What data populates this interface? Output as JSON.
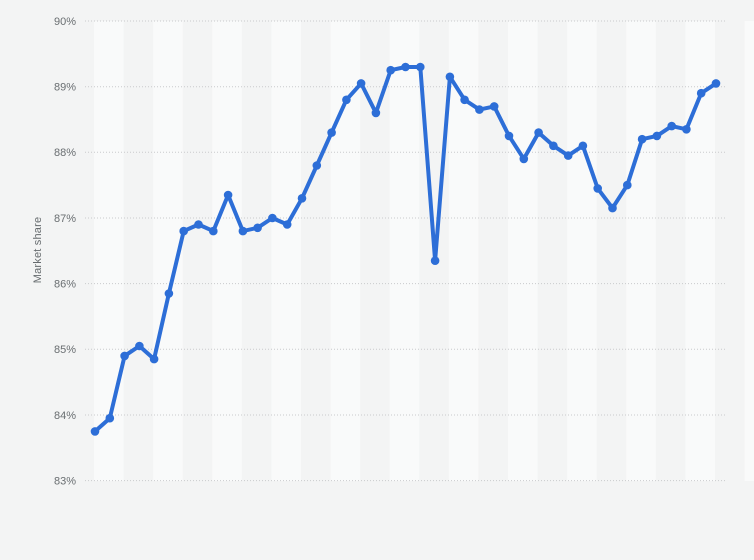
{
  "page": {
    "background_color": "#f3f4f4",
    "stripe_color": "#f9fafa",
    "gridline_color": "#c9cacc",
    "tick_label_color": "#696e71"
  },
  "chart_data": {
    "type": "line",
    "title": "",
    "xlabel": "",
    "ylabel": "Market share",
    "legend": "none",
    "grid": "horizontal-dotted",
    "plot_background": "alternating vertical stripe bands, x-axis labels cropped out of view",
    "ylim": [
      82.8,
      90.15
    ],
    "yticks": [
      {
        "value": 90,
        "label": "90%"
      },
      {
        "value": 89,
        "label": "89%"
      },
      {
        "value": 88,
        "label": "88%"
      },
      {
        "value": 87,
        "label": "87%"
      },
      {
        "value": 86,
        "label": "86%"
      },
      {
        "value": 85,
        "label": "85%"
      },
      {
        "value": 84,
        "label": "84%"
      },
      {
        "value": 83,
        "label": "83%"
      }
    ],
    "series": [
      {
        "name": "Market share",
        "color": "#2d6ed7",
        "marker": "circle",
        "values": [
          83.75,
          83.95,
          84.9,
          85.05,
          84.85,
          85.85,
          86.8,
          86.9,
          86.8,
          87.35,
          86.8,
          86.85,
          87.0,
          86.9,
          87.3,
          87.8,
          88.3,
          88.8,
          89.05,
          88.6,
          89.25,
          89.3,
          89.3,
          86.35,
          89.15,
          88.8,
          88.65,
          88.7,
          88.25,
          87.9,
          88.3,
          88.1,
          87.95,
          88.1,
          87.45,
          87.15,
          87.5,
          88.2,
          88.25,
          88.4,
          88.35,
          88.9,
          89.05
        ]
      }
    ],
    "point_count": 43
  }
}
